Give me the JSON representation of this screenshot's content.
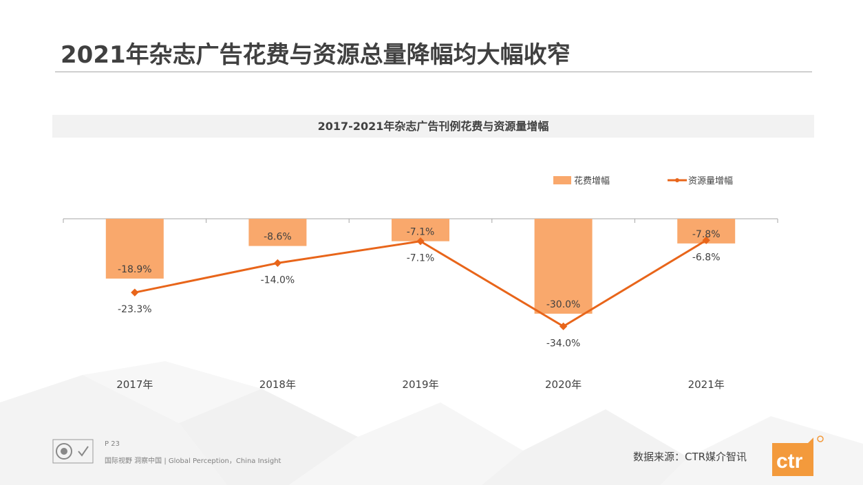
{
  "page": {
    "title": "2021年杂志广告花费与资源总量降幅均大幅收窄",
    "page_number": "P 23",
    "slogan": "国际视野 洞察中国 | Global Perception，China Insight",
    "source": "数据来源：CTR媒介智讯",
    "brand": "ctr"
  },
  "colors": {
    "bar": "#f9a86c",
    "line": "#e8651a",
    "text": "#404040",
    "axis": "#a6a6a6"
  },
  "chart_data": {
    "type": "bar",
    "title": "2017-2021年杂志广告刊例花费与资源量增幅",
    "categories": [
      "2017年",
      "2018年",
      "2019年",
      "2020年",
      "2021年"
    ],
    "ylim": [
      -40,
      0
    ],
    "legend_position": "top-right",
    "grid": false,
    "series": [
      {
        "name": "花费增幅",
        "type": "bar",
        "values": [
          -18.9,
          -8.6,
          -7.1,
          -30.0,
          -7.8
        ],
        "labels": [
          "-18.9%",
          "-8.6%",
          "-7.1%",
          "-30.0%",
          "-7.8%"
        ]
      },
      {
        "name": "资源量增幅",
        "type": "line",
        "values": [
          -23.3,
          -14.0,
          -7.1,
          -34.0,
          -6.8
        ],
        "labels": [
          "-23.3%",
          "-14.0%",
          "-7.1%",
          "-34.0%",
          "-6.8%"
        ]
      }
    ]
  }
}
